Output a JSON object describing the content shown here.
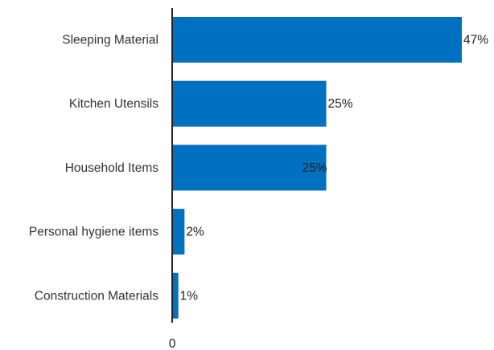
{
  "chart_data": {
    "type": "bar",
    "orientation": "horizontal",
    "categories": [
      "Sleeping Material",
      "Kitchen Utensils",
      "Household Items",
      "Personal hygiene items",
      "Construction Materials"
    ],
    "values": [
      47,
      25,
      25,
      2,
      1
    ],
    "data_labels": [
      "47%",
      "25%",
      "25%",
      "2%",
      "1%"
    ],
    "x_ticks": [
      "0"
    ],
    "title": "",
    "xlabel": "",
    "ylabel": "",
    "xlim": [
      0,
      48
    ],
    "grid": false,
    "legend": "none",
    "bar_color": "#0070c0",
    "axis_color": "#222222"
  }
}
